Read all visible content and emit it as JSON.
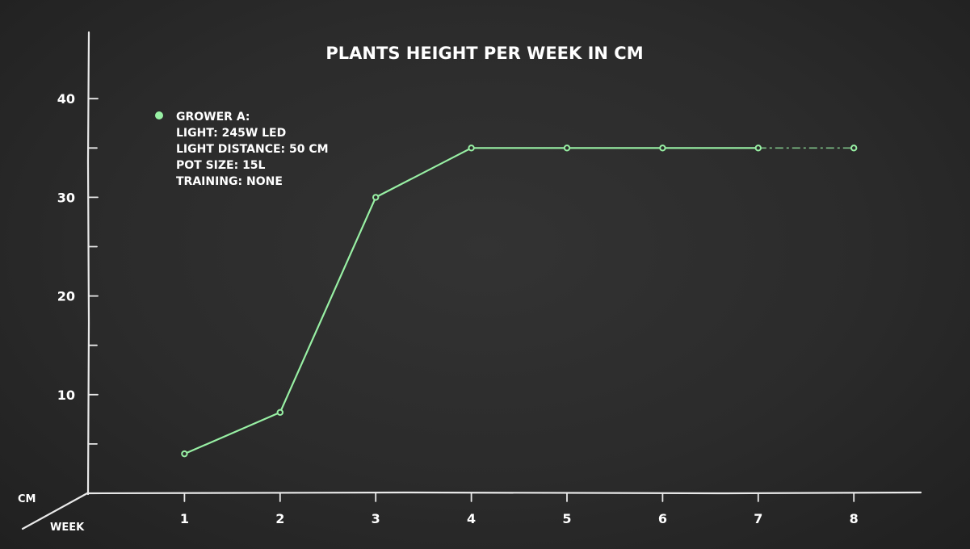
{
  "chart_data": {
    "type": "line",
    "title": "PLANTS HEIGHT PER WEEK IN CM",
    "xlabel": "WEEK",
    "ylabel": "CM",
    "x": [
      1,
      2,
      3,
      4,
      5,
      6,
      7,
      8
    ],
    "x_tick_labels": [
      "1",
      "2",
      "3",
      "4",
      "5",
      "6",
      "7",
      "8"
    ],
    "y_tick_labels": [
      "10",
      "20",
      "30",
      "40"
    ],
    "y_ticks": [
      10,
      20,
      30,
      40
    ],
    "y_minor_ticks": [
      5,
      15,
      25,
      35
    ],
    "ylim": [
      0,
      45
    ],
    "xlim": [
      0,
      8.7
    ],
    "grid": false,
    "legend_position": "top-left",
    "series": [
      {
        "name": "GROWER A:",
        "color": "#98f0a4",
        "values": [
          4,
          8.2,
          30,
          35,
          35,
          35,
          35,
          35
        ]
      }
    ],
    "legend_lines": [
      "GROWER A:",
      "LIGHT: 245W LED",
      "LIGHT DISTANCE: 50 CM",
      "POT SIZE: 15L",
      "TRAINING: NONE"
    ]
  }
}
